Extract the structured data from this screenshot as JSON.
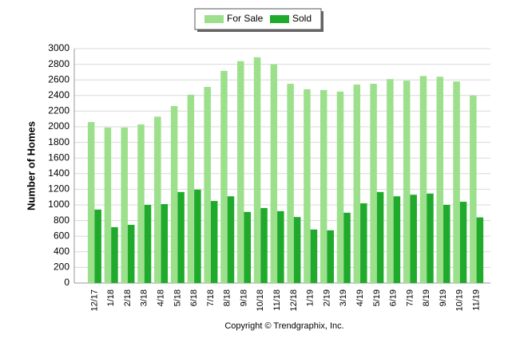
{
  "chart_data": {
    "type": "bar",
    "y_label": "Number of Homes",
    "footer": "Copyright © Trendgraphix, Inc.",
    "categories": [
      "12/17",
      "1/18",
      "2/18",
      "3/18",
      "4/18",
      "5/18",
      "6/18",
      "7/18",
      "8/18",
      "9/18",
      "10/18",
      "11/18",
      "12/18",
      "1/19",
      "2/19",
      "3/19",
      "4/19",
      "5/19",
      "6/19",
      "7/19",
      "8/19",
      "9/19",
      "10/19",
      "11/19"
    ],
    "series": [
      {
        "name": "For Sale",
        "color": "#9ce08c",
        "values": [
          2060,
          1990,
          1990,
          2030,
          2130,
          2265,
          2410,
          2510,
          2715,
          2840,
          2890,
          2800,
          2550,
          2480,
          2470,
          2450,
          2540,
          2550,
          2610,
          2590,
          2650,
          2640,
          2580,
          2400
        ]
      },
      {
        "name": "Sold",
        "color": "#1faa2c",
        "values": [
          940,
          715,
          745,
          1000,
          1010,
          1165,
          1195,
          1050,
          1110,
          910,
          960,
          920,
          845,
          685,
          675,
          900,
          1020,
          1165,
          1110,
          1130,
          1145,
          1000,
          1040,
          840
        ]
      }
    ],
    "ylim": [
      0,
      3000
    ],
    "yticks": [
      0,
      200,
      400,
      600,
      800,
      1000,
      1200,
      1400,
      1600,
      1800,
      2000,
      2200,
      2400,
      2600,
      2800,
      3000
    ],
    "grid": true
  }
}
